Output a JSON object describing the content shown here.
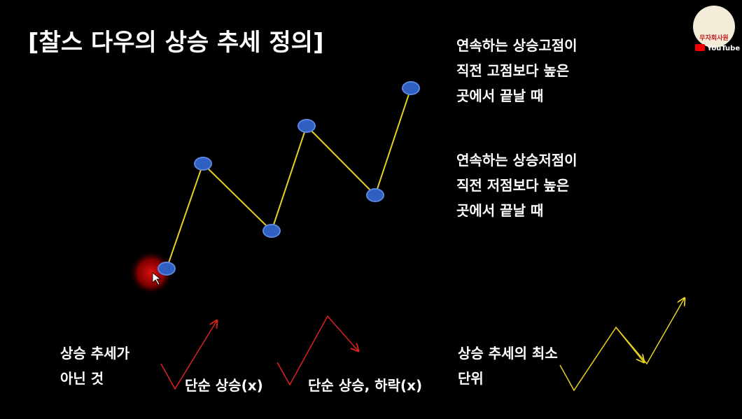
{
  "title": "[찰스 다우의 상승 추세 정의]",
  "notes": [
    {
      "lines": [
        "연속하는 상승고점이",
        "직전 고점보다 높은",
        "곳에서 끝날 때"
      ]
    },
    {
      "lines": [
        "연속하는 상승저점이",
        "직전 저점보다 높은",
        "곳에서 끝날 때"
      ]
    }
  ],
  "examples": [
    {
      "lines": [
        "상승 추세가",
        "아닌 것"
      ]
    },
    {
      "lines": [
        "단순 상승(x)"
      ]
    },
    {
      "lines": [
        "단순 상승, 하락(x)"
      ]
    },
    {
      "lines": [
        "상승 추세의 최소",
        "단위"
      ]
    }
  ],
  "logo": {
    "name": "무자회사원",
    "platform": "YouTube"
  }
}
